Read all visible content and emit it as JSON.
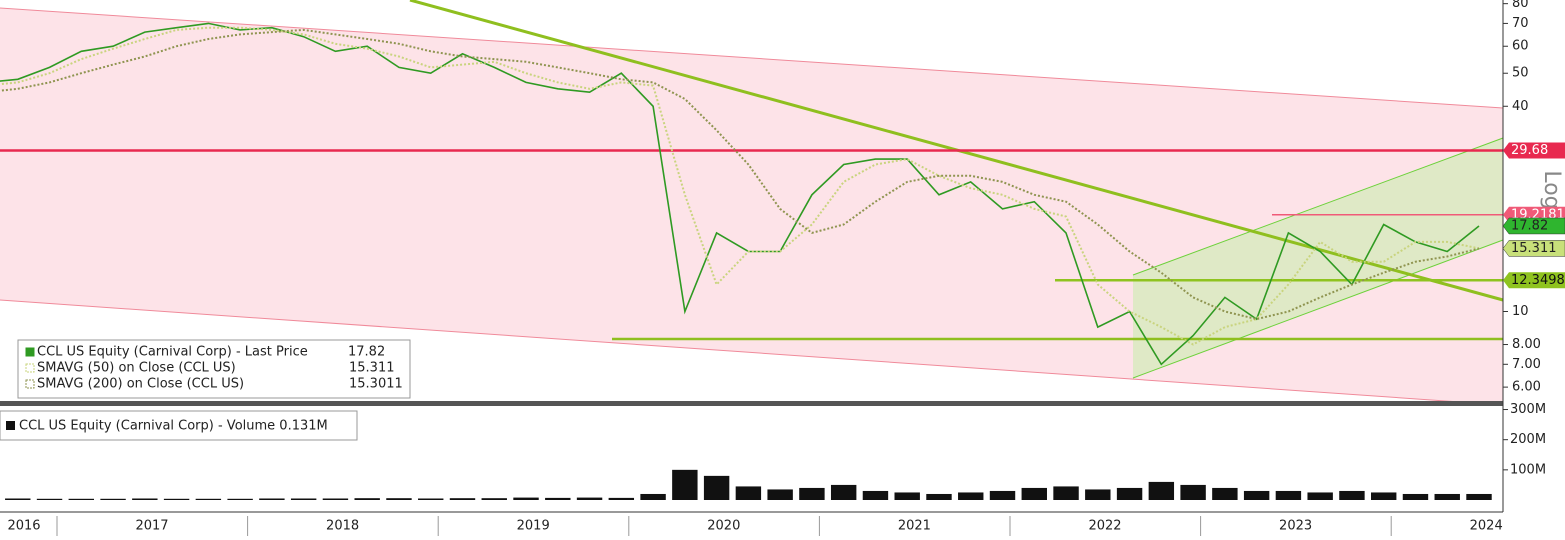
{
  "chart_data": [
    {
      "type": "line",
      "log": true,
      "ylim": [
        5.5,
        82
      ],
      "yticks": [
        {
          "value": 6,
          "label": "6.00"
        },
        {
          "value": 7,
          "label": "7.00"
        },
        {
          "value": 8,
          "label": "8.00"
        },
        10,
        40,
        50,
        60,
        70,
        80
      ],
      "xticks": [
        "2016",
        "2017",
        "2018",
        "2019",
        "2020",
        "2021",
        "2022",
        "2023",
        "2024"
      ],
      "axis_label": "Log",
      "series": [
        {
          "name": "CCL US Equity (Carnival Corp) - Last Price",
          "last": 17.82,
          "color": "#2f9a22",
          "values": [
            47,
            48,
            52,
            58,
            60,
            66,
            68,
            70,
            67,
            68,
            64,
            58,
            60,
            52,
            50,
            57,
            52,
            47,
            45,
            44,
            50,
            40,
            10,
            17,
            15,
            15,
            22,
            27,
            28,
            28,
            22,
            24,
            20,
            21,
            17,
            9,
            10,
            7,
            8.5,
            11,
            9.5,
            17,
            15,
            12,
            18,
            16,
            15,
            17.82
          ]
        },
        {
          "name": "SMAVG (50)  on Close (CCL US)",
          "last": 15.311,
          "color": "#c9d47e",
          "values": [
            46,
            47,
            50,
            55,
            59,
            63,
            67,
            68,
            68,
            67,
            65,
            61,
            59,
            56,
            52,
            53,
            54,
            50,
            47,
            45,
            47,
            46,
            22,
            12,
            15,
            15,
            18,
            24,
            27,
            28,
            25,
            23,
            22,
            20,
            19,
            12,
            10,
            9,
            8,
            9,
            9.5,
            12,
            16,
            14,
            14,
            16,
            16,
            15.311
          ]
        },
        {
          "name": "SMAVG (200)  on Close (CCL US)",
          "last": 15.3011,
          "color": "#8f9450",
          "values": [
            44,
            45,
            47,
            50,
            53,
            56,
            60,
            63,
            65,
            66,
            67,
            65,
            63,
            61,
            58,
            56,
            55,
            54,
            52,
            50,
            48,
            47,
            42,
            34,
            27,
            20,
            17,
            18,
            21,
            24,
            25,
            25,
            24,
            22,
            21,
            18,
            15,
            13,
            11,
            10,
            9.5,
            10,
            11,
            12,
            13,
            14,
            14.5,
            15.3011
          ]
        }
      ],
      "hlines": [
        {
          "value": 29.68,
          "label": "29.68",
          "color": "#e8294f"
        },
        {
          "value": 19.2181,
          "label": "19.2181",
          "color": "#f05a78"
        },
        {
          "value": 12.3498,
          "label": "12.3498",
          "color": "#8fc31f"
        }
      ]
    },
    {
      "type": "bar",
      "title": "CCL US Equity (Carnival Corp) - Volume 0.131M",
      "ylim": [
        0,
        315
      ],
      "yticks": [
        {
          "value": 100,
          "label": "100M"
        },
        {
          "value": 200,
          "label": "200M"
        },
        {
          "value": 300,
          "label": "300M"
        }
      ],
      "color": "#111111",
      "values": [
        5,
        5,
        4,
        4,
        4,
        5,
        4,
        4,
        4,
        5,
        5,
        5,
        6,
        6,
        5,
        6,
        6,
        8,
        7,
        8,
        7,
        20,
        100,
        80,
        45,
        35,
        40,
        50,
        30,
        25,
        20,
        25,
        30,
        40,
        45,
        35,
        40,
        60,
        50,
        40,
        30,
        30,
        25,
        30,
        25,
        20,
        20,
        20
      ]
    }
  ]
}
